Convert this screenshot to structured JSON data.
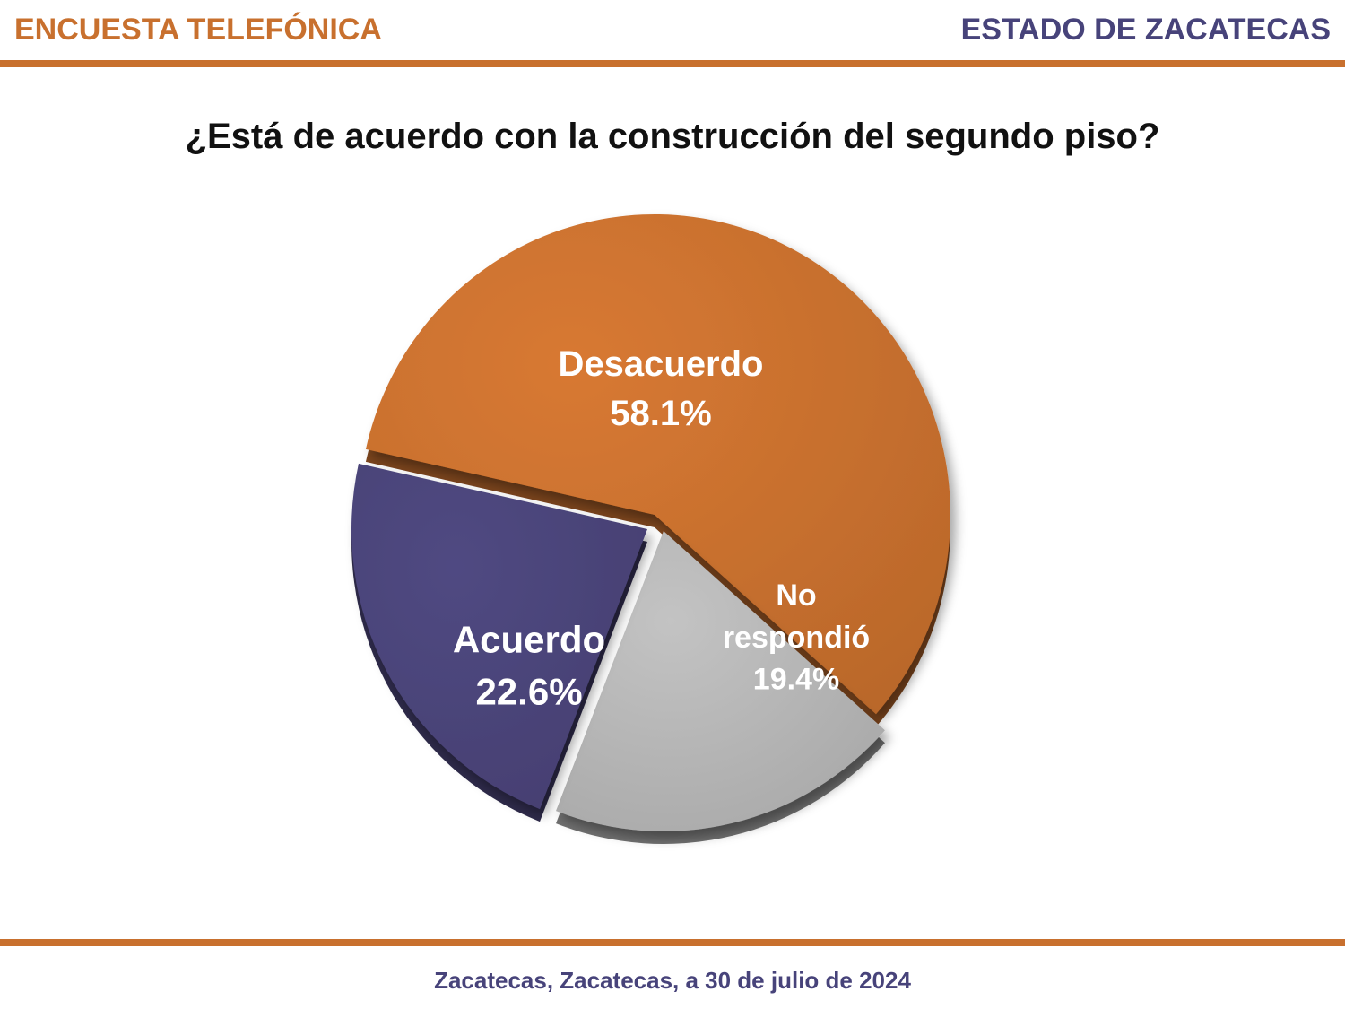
{
  "header": {
    "left_title": "ENCUESTA TELEFÓNICA",
    "right_title": "ESTADO DE ZACATECAS"
  },
  "question": "¿Está de acuerdo con la construcción del segundo piso?",
  "footer": "Zacatecas, Zacatecas, a 30 de julio de 2024",
  "colors": {
    "accent_orange": "#c8702e",
    "accent_purple": "#47437a",
    "slice_desacuerdo": "#c8702e",
    "slice_acuerdo": "#4a4478",
    "slice_no_respondio": "#b5b5b5"
  },
  "chart_data": {
    "type": "pie",
    "title": "¿Está de acuerdo con la construcción del segundo piso?",
    "slices": [
      {
        "name": "Desacuerdo",
        "value": 58.1,
        "label": "58.1%",
        "color": "#c8702e"
      },
      {
        "name": "No respondió",
        "value": 19.4,
        "label": "19.4%",
        "color": "#b5b5b5"
      },
      {
        "name": "Acuerdo",
        "value": 22.6,
        "label": "22.6%",
        "color": "#4a4478"
      }
    ]
  }
}
